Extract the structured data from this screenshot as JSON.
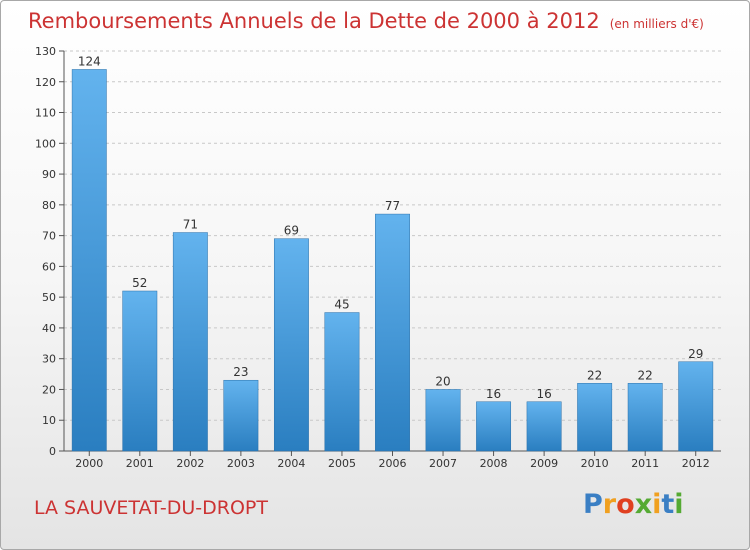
{
  "header": {
    "title": "Remboursements Annuels de la Dette de 2000 à 2012",
    "unit": "(en milliers d'€)"
  },
  "footer": {
    "town": "LA SAUVETAT-DU-DROPT",
    "logo": [
      "P",
      "r",
      "o",
      "x",
      "i",
      "t",
      "i"
    ]
  },
  "colors": {
    "title": "#cc3333",
    "bar_top": "#63b3ee",
    "bar_bottom": "#2a7ec0",
    "logo": [
      "#3a7fc4",
      "#f0a020",
      "#e04020",
      "#55aa33",
      "#f0a020",
      "#3a7fc4",
      "#55aa33"
    ]
  },
  "chart_data": {
    "type": "bar",
    "title": "Remboursements Annuels de la Dette de 2000 à 2012",
    "xlabel": "",
    "ylabel": "",
    "categories": [
      "2000",
      "2001",
      "2002",
      "2003",
      "2004",
      "2005",
      "2006",
      "2007",
      "2008",
      "2009",
      "2010",
      "2011",
      "2012"
    ],
    "values": [
      124,
      52,
      71,
      23,
      69,
      45,
      77,
      20,
      16,
      16,
      22,
      22,
      29
    ],
    "ylim": [
      0,
      130
    ],
    "yticks": [
      0,
      10,
      20,
      30,
      40,
      50,
      60,
      70,
      80,
      90,
      100,
      110,
      120,
      130
    ],
    "grid": true,
    "legend": "none"
  }
}
